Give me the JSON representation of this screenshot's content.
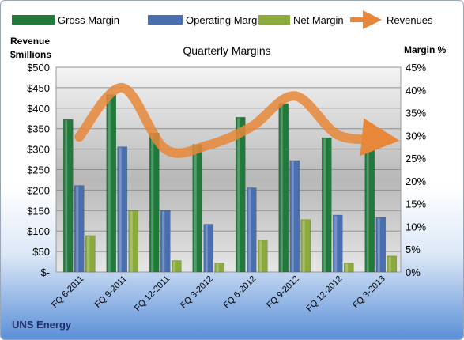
{
  "chart_data": {
    "type": "bar",
    "title": "Quarterly Margins",
    "footer": "UNS Energy",
    "left_axis_title": [
      "Revenue",
      "$millions"
    ],
    "right_axis_title": "Margin %",
    "categories": [
      "FQ 6-2011",
      "FQ 9-2011",
      "FQ 12-2011",
      "FQ 3-2012",
      "FQ 6-2012",
      "FQ 9-2012",
      "FQ 12-2012",
      "FQ 3-2013"
    ],
    "left_ticks": [
      "$-",
      "$50",
      "$100",
      "$150",
      "$200",
      "$250",
      "$300",
      "$350",
      "$400",
      "$450",
      "$500"
    ],
    "right_ticks": [
      "0%",
      "5%",
      "10%",
      "15%",
      "20%",
      "25%",
      "30%",
      "35%",
      "40%",
      "45%"
    ],
    "ylim_left": [
      0,
      500
    ],
    "ylim_right": [
      0,
      45
    ],
    "legend_position": "top",
    "grid": true,
    "series": [
      {
        "name": "Gross Margin",
        "kind": "bar",
        "axis": "right",
        "color": "#1f7a3c",
        "values": [
          33.5,
          39.0,
          30.5,
          28.0,
          34.0,
          37.0,
          29.5,
          29.5
        ]
      },
      {
        "name": "Operating Margin",
        "kind": "bar",
        "axis": "right",
        "color": "#4a6fb0",
        "values": [
          19.0,
          27.5,
          13.5,
          10.5,
          18.5,
          24.5,
          12.5,
          12.0
        ]
      },
      {
        "name": "Net Margin",
        "kind": "bar",
        "axis": "right",
        "color": "#8aaa3c",
        "values": [
          8.0,
          13.5,
          2.5,
          2.0,
          7.0,
          11.5,
          2.0,
          3.5
        ]
      },
      {
        "name": "Revenues",
        "kind": "line",
        "axis": "left",
        "color": "#e8873a",
        "values": [
          330,
          450,
          300,
          310,
          355,
          430,
          335,
          325
        ]
      }
    ]
  }
}
